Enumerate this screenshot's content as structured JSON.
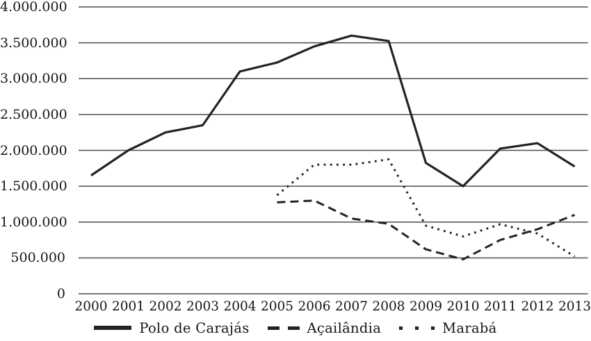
{
  "chart_data": {
    "type": "line",
    "title": "",
    "xlabel": "",
    "ylabel": "",
    "categories": [
      "2000",
      "2001",
      "2002",
      "2003",
      "2004",
      "2005",
      "2006",
      "2007",
      "2008",
      "2009",
      "2010",
      "2011",
      "2012",
      "2013"
    ],
    "ylim": [
      0,
      4000000
    ],
    "y_tick_interval": 500000,
    "y_ticks": [
      {
        "label": "0",
        "value": 0
      },
      {
        "label": "500.000",
        "value": 500000
      },
      {
        "label": "1.000.000",
        "value": 1000000
      },
      {
        "label": "1.500.000",
        "value": 1500000
      },
      {
        "label": "2.000.000",
        "value": 2000000
      },
      {
        "label": "2.500.000",
        "value": 2500000
      },
      {
        "label": "3.000.000",
        "value": 3000000
      },
      {
        "label": "3.500.000",
        "value": 3500000
      },
      {
        "label": "4.000.000",
        "value": 4000000
      }
    ],
    "grid": "horizontal",
    "legend_position": "bottom",
    "series": [
      {
        "name": "Polo de Carajás",
        "line_style": "solid",
        "values": [
          1650000,
          2000000,
          2250000,
          2350000,
          3100000,
          3225000,
          3450000,
          3600000,
          3525000,
          1825000,
          1500000,
          2025000,
          2100000,
          1775000
        ]
      },
      {
        "name": "Açailândia",
        "line_style": "dashed",
        "values": [
          null,
          null,
          null,
          null,
          null,
          1275000,
          1300000,
          1050000,
          975000,
          620000,
          480000,
          750000,
          900000,
          1100000
        ]
      },
      {
        "name": "Marabá",
        "line_style": "dotted",
        "values": [
          null,
          null,
          null,
          null,
          null,
          1375000,
          1800000,
          1800000,
          1875000,
          950000,
          800000,
          970000,
          840000,
          520000
        ]
      }
    ],
    "colors": {
      "line": "#252222",
      "grid": "#4d4d4d",
      "text": "#141414",
      "background": "#ffffff"
    }
  }
}
